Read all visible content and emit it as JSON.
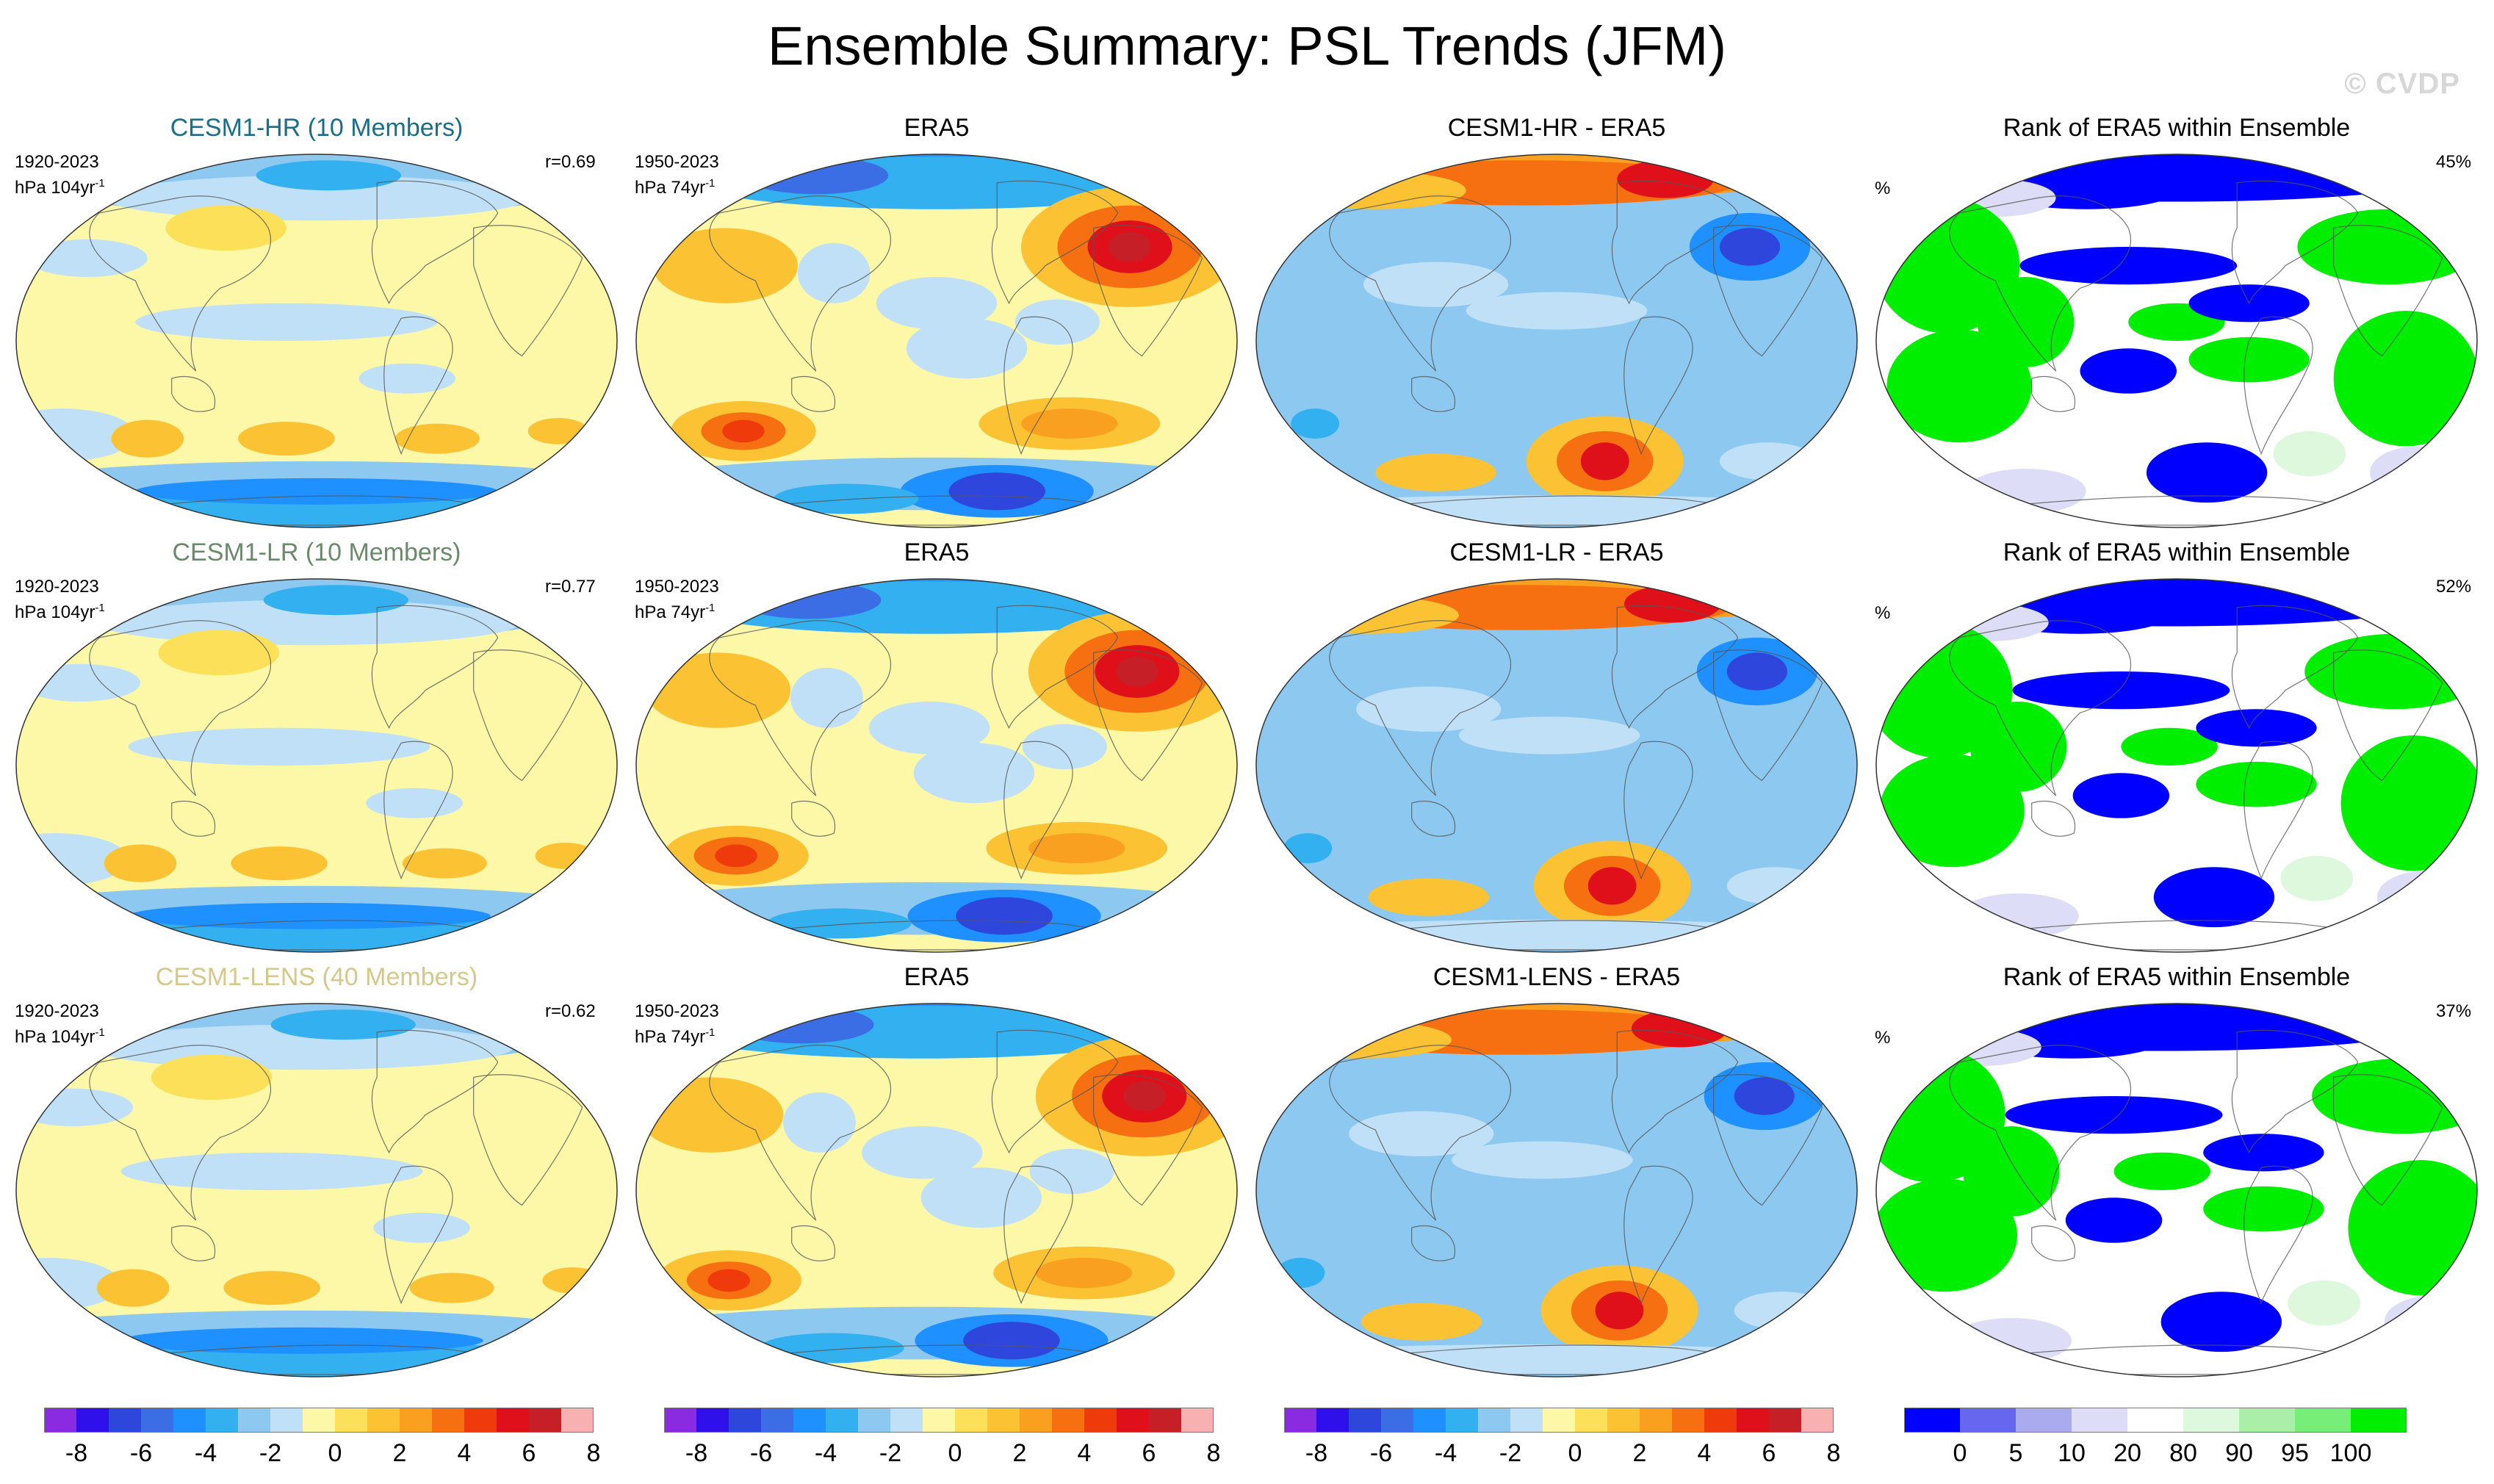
{
  "figure_title": "Ensemble Summary: PSL Trends (JFM)",
  "watermark": "© CVDP",
  "colors": {
    "diverging": [
      "#8a2be2",
      "#3010ea",
      "#2f46dd",
      "#3b6ee4",
      "#1e90ff",
      "#33b0f0",
      "#8cc8f0",
      "#bfe0f6",
      "#fcf8a8",
      "#fde05a",
      "#fbc334",
      "#f9a021",
      "#f67012",
      "#ef3a0c",
      "#e0101a",
      "#c61f28",
      "#f8b0b0"
    ],
    "rank": [
      "#0000ff",
      "#6666ee",
      "#aaaaee",
      "#ddddf8",
      "#ffffff",
      "#ddf8dd",
      "#aaeeaa",
      "#77ee77",
      "#00ee00"
    ],
    "cesm1_hr": "#1a6e8a",
    "cesm1_lr": "#6b8a6b",
    "cesm1_lens": "#d4c98a"
  },
  "rows": [
    {
      "model_title": "CESM1-HR (10 Members)",
      "model_title_color": "#1a6e8a",
      "model_period": "1920-2023",
      "model_units_pre": "hPa 104yr",
      "model_units_sup": "-1",
      "pattern_corr": "r=0.69",
      "obs_title": "ERA5",
      "obs_period": "1950-2023",
      "obs_units_pre": "hPa 74yr",
      "obs_units_sup": "-1",
      "diff_title": "CESM1-HR - ERA5",
      "rank_title": "Rank of ERA5 within Ensemble",
      "rank_units": "%",
      "rank_pct": "45%"
    },
    {
      "model_title": "CESM1-LR (10 Members)",
      "model_title_color": "#6b8a6b",
      "model_period": "1920-2023",
      "model_units_pre": "hPa 104yr",
      "model_units_sup": "-1",
      "pattern_corr": "r=0.77",
      "obs_title": "ERA5",
      "obs_period": "1950-2023",
      "obs_units_pre": "hPa 74yr",
      "obs_units_sup": "-1",
      "diff_title": "CESM1-LR - ERA5",
      "rank_title": "Rank of ERA5 within Ensemble",
      "rank_units": "%",
      "rank_pct": "52%"
    },
    {
      "model_title": "CESM1-LENS (40 Members)",
      "model_title_color": "#d4c98a",
      "model_period": "1920-2023",
      "model_units_pre": "hPa 104yr",
      "model_units_sup": "-1",
      "pattern_corr": "r=0.62",
      "obs_title": "ERA5",
      "obs_period": "1950-2023",
      "obs_units_pre": "hPa 74yr",
      "obs_units_sup": "-1",
      "diff_title": "CESM1-LENS - ERA5",
      "rank_title": "Rank of ERA5 within Ensemble",
      "rank_units": "%",
      "rank_pct": "37%"
    }
  ],
  "chart_data": [
    {
      "type": "colorbar",
      "variable": "PSL trend",
      "levels": [
        -8,
        -7,
        -6,
        -5,
        -4,
        -3,
        -2,
        -1,
        0,
        1,
        2,
        3,
        4,
        5,
        6,
        7,
        8
      ],
      "tick_labels": [
        "-8",
        "-6",
        "-4",
        "-2",
        "0",
        "2",
        "4",
        "6",
        "8"
      ]
    },
    {
      "type": "colorbar",
      "variable": "Rank",
      "levels": [
        0,
        5,
        10,
        20,
        80,
        90,
        95,
        100
      ],
      "tick_labels": [
        "0",
        "5",
        "10",
        "20",
        "80",
        "90",
        "95",
        "100"
      ]
    }
  ]
}
